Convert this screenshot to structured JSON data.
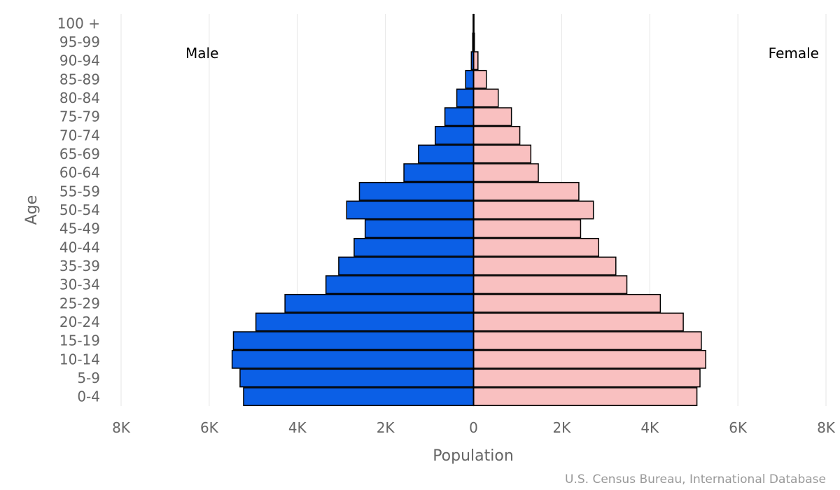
{
  "chart_data": {
    "type": "bar",
    "orientation": "horizontal",
    "layout": "population-pyramid",
    "title": "",
    "xlabel": "Population",
    "ylabel": "Age",
    "credit": "U.S. Census Bureau, International Database",
    "categories": [
      "100 +",
      "95-99",
      "90-94",
      "85-89",
      "80-84",
      "75-79",
      "70-74",
      "65-69",
      "60-64",
      "55-59",
      "50-54",
      "45-49",
      "40-44",
      "35-39",
      "30-34",
      "25-29",
      "20-24",
      "15-19",
      "10-14",
      "5-9",
      "0-4"
    ],
    "series": [
      {
        "name": "Male",
        "color": "#0b5fe6",
        "side": "left",
        "values": [
          10,
          20,
          50,
          180,
          380,
          650,
          870,
          1250,
          1580,
          2590,
          2880,
          2460,
          2710,
          3060,
          3350,
          4280,
          4940,
          5450,
          5480,
          5300,
          5220
        ]
      },
      {
        "name": "Female",
        "color": "#f9c0c0",
        "side": "right",
        "values": [
          10,
          20,
          100,
          290,
          560,
          860,
          1050,
          1300,
          1470,
          2390,
          2720,
          2430,
          2840,
          3230,
          3480,
          4240,
          4760,
          5170,
          5270,
          5140,
          5070
        ]
      }
    ],
    "xlim": [
      -8000,
      8000
    ],
    "xticks": [
      -8000,
      -6000,
      -4000,
      -2000,
      0,
      2000,
      4000,
      6000,
      8000
    ],
    "xtick_labels": [
      "8K",
      "6K",
      "4K",
      "2K",
      "0",
      "2K",
      "4K",
      "6K",
      "8K"
    ],
    "grid": true,
    "legend": "series names at top-left and top-right corners"
  }
}
